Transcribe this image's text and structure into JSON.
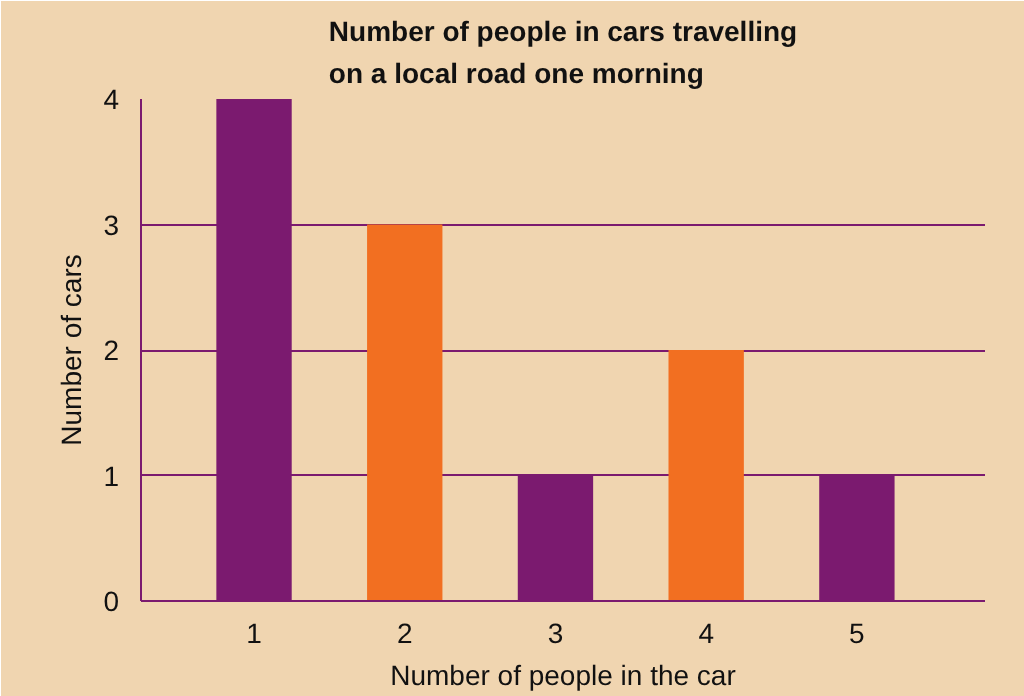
{
  "chart_data": {
    "type": "bar",
    "title": "Number of people in cars travelling\non a local road one morning",
    "xlabel": "Number of people in the car",
    "ylabel": "Number of cars",
    "categories": [
      "1",
      "2",
      "3",
      "4",
      "5"
    ],
    "values": [
      4,
      3,
      1,
      2,
      1
    ],
    "colors": [
      "#7b1a6f",
      "#f26f21",
      "#7b1a6f",
      "#f26f21",
      "#7b1a6f"
    ],
    "ylim": [
      0,
      4
    ],
    "yticks": [
      0,
      1,
      2,
      3,
      4
    ],
    "grid": "y"
  }
}
